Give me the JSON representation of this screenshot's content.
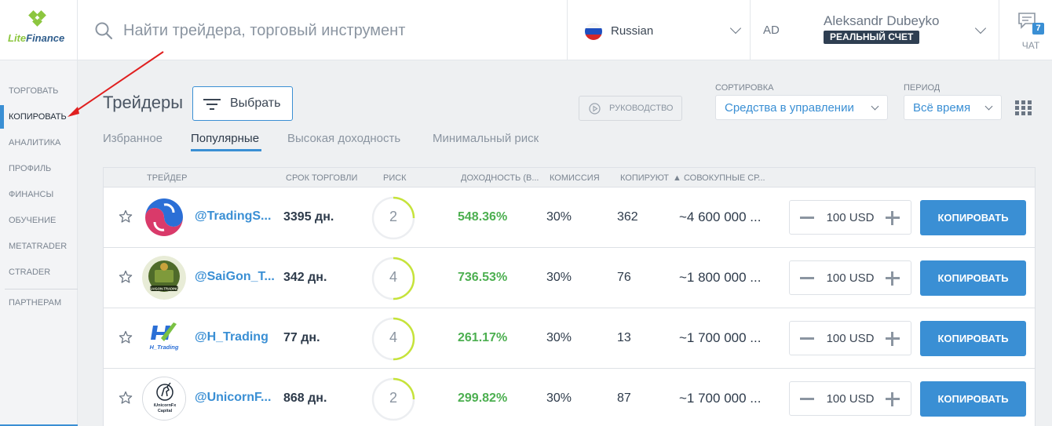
{
  "brand": {
    "logo_part1": "Lite",
    "logo_part2": "Finance"
  },
  "search": {
    "placeholder": "Найти трейдера, торговый инструмент"
  },
  "language": {
    "label": "Russian"
  },
  "account": {
    "initials": "AD",
    "name": "Aleksandr Dubeyko",
    "badge": "РЕАЛЬНЫЙ СЧЕТ"
  },
  "chat": {
    "label": "ЧАТ",
    "count": "7"
  },
  "sidebar": {
    "items": [
      {
        "label": "ТОРГОВАТЬ"
      },
      {
        "label": "КОПИРОВАТЬ"
      },
      {
        "label": "АНАЛИТИКА"
      },
      {
        "label": "ПРОФИЛЬ"
      },
      {
        "label": "ФИНАНСЫ"
      },
      {
        "label": "ОБУЧЕНИЕ"
      },
      {
        "label": "METATRADER"
      },
      {
        "label": "CTRADER"
      }
    ],
    "partners": "ПАРТНЕРАМ",
    "active_index": 1
  },
  "toolbar": {
    "title": "Трейдеры",
    "choose_label": "Выбрать",
    "guide_label": "РУКОВОДСТВО",
    "sort_caption": "СОРТИРОВКА",
    "sort_value": "Средства в управлении",
    "period_caption": "ПЕРИОД",
    "period_value": "Всё время"
  },
  "tabs": [
    {
      "label": "Избранное"
    },
    {
      "label": "Популярные"
    },
    {
      "label": "Высокая доходность"
    },
    {
      "label": "Минимальный риск"
    }
  ],
  "active_tab": 1,
  "table": {
    "headers": {
      "trader": "ТРЕЙДЕР",
      "term": "СРОК ТОРГОВЛИ",
      "risk": "РИСК",
      "yield": "ДОХОДНОСТЬ (В...",
      "commission": "КОМИССИЯ",
      "copiers": "КОПИРУЮТ",
      "funds": "▲ СОВОКУПНЫЕ СР..."
    },
    "rows": [
      {
        "nick": "@TradingS...",
        "days": "3395 дн.",
        "risk": "2",
        "yield": "548.36%",
        "commission": "30%",
        "copiers": "362",
        "funds": "~4 600 000 ...",
        "amount": "100 USD",
        "button": "КОПИРОВАТЬ",
        "avatar": "swirl-logo"
      },
      {
        "nick": "@SaiGon_T...",
        "days": "342 дн.",
        "risk": "4",
        "yield": "736.53%",
        "commission": "30%",
        "copiers": "76",
        "funds": "~1 800 000 ...",
        "amount": "100 USD",
        "button": "КОПИРОВАТЬ",
        "avatar": "saigon-trading-logo"
      },
      {
        "nick": "@H_Trading",
        "days": "77 дн.",
        "risk": "4",
        "yield": "261.17%",
        "commission": "30%",
        "copiers": "13",
        "funds": "~1 700 000 ...",
        "amount": "100 USD",
        "button": "КОПИРОВАТЬ",
        "avatar": "h-trading-logo"
      },
      {
        "nick": "@UnicornF...",
        "days": "868 дн.",
        "risk": "2",
        "yield": "299.82%",
        "commission": "30%",
        "copiers": "87",
        "funds": "~1 700 000 ...",
        "amount": "100 USD",
        "button": "КОПИРОВАТЬ",
        "avatar": "unicorn-fx-logo"
      }
    ]
  },
  "logo_text": {
    "saigon": "SAIGON-TRADING",
    "h_trading": "H_Trading",
    "unicorn_line1": "iUnicornFx",
    "unicorn_line2": "Capital"
  },
  "colors": {
    "accent": "#3a8fd4",
    "positive": "#4caf50",
    "risk_ring": "#c6e33a",
    "annotation": "#e02020"
  }
}
